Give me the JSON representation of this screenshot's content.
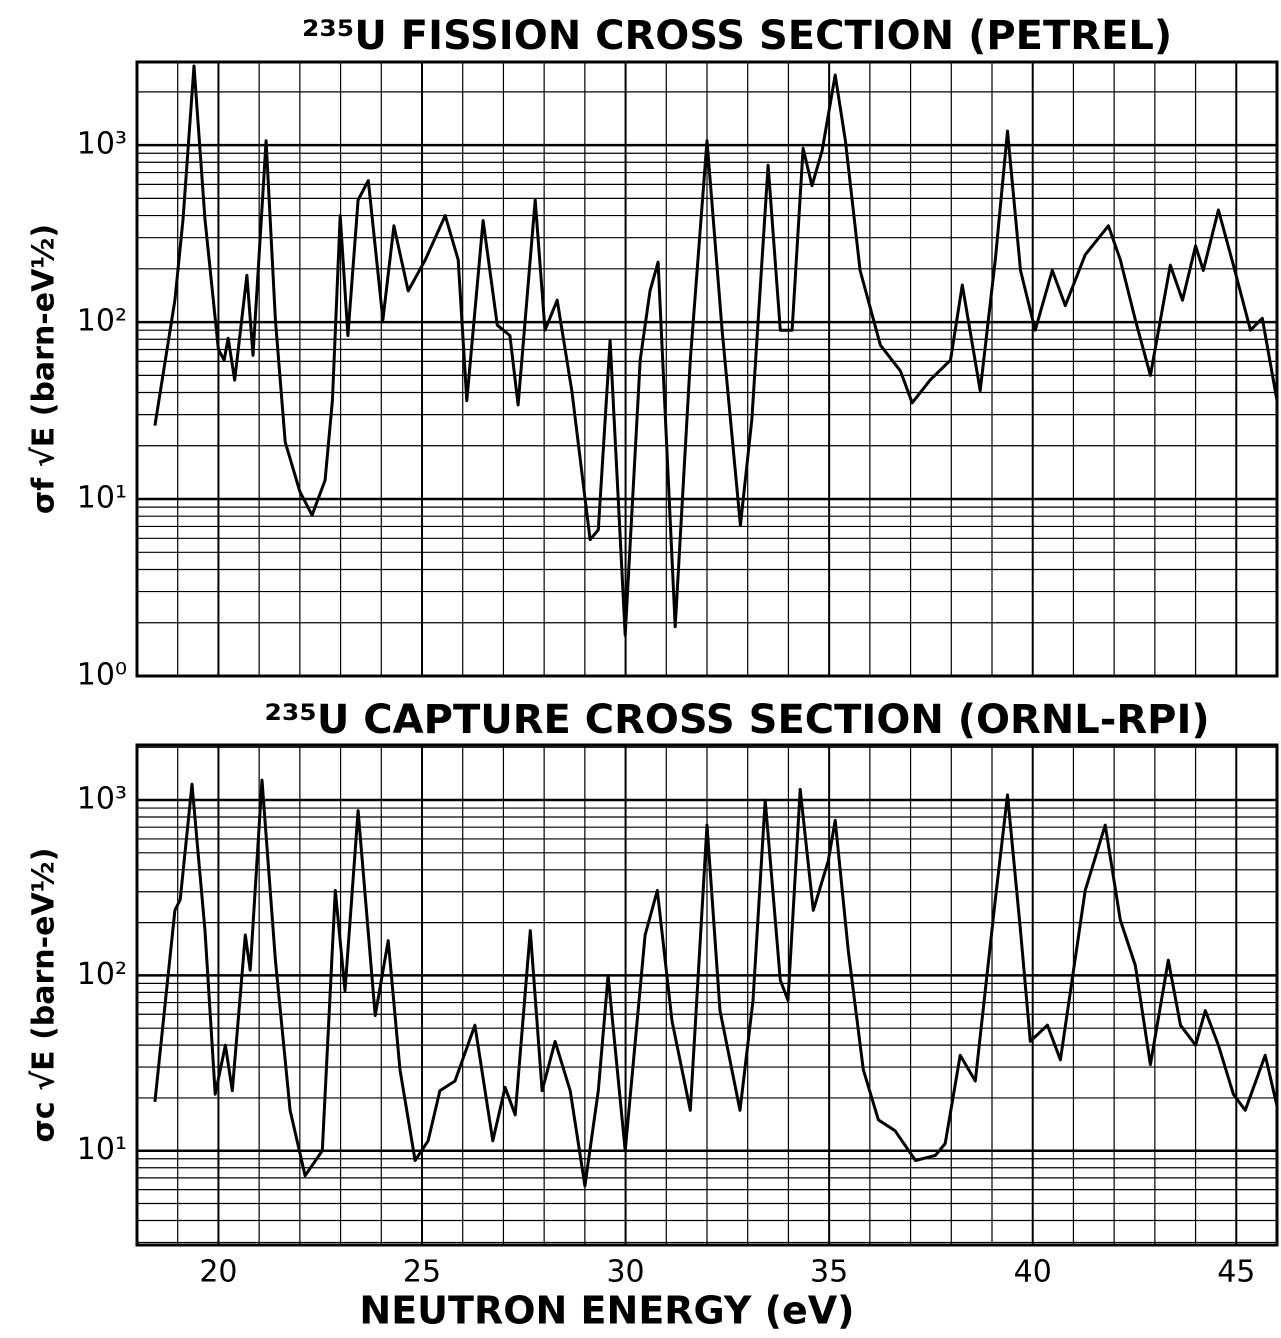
{
  "chart_data": [
    {
      "type": "line",
      "title": "²³⁵U FISSION CROSS SECTION (PETREL)",
      "ylabel": "σf √E (barn-eV½)",
      "color": "#000000",
      "log_y": true,
      "grid": true,
      "xtick_labels": false,
      "xlim": [
        18,
        46
      ],
      "xticks": [
        20,
        25,
        30,
        35,
        40,
        45
      ],
      "xminorticks": [
        19,
        21,
        22,
        23,
        24,
        26,
        27,
        28,
        29,
        31,
        32,
        33,
        34,
        36,
        37,
        38,
        39,
        41,
        42,
        43,
        44
      ],
      "ylim": [
        1,
        2950
      ],
      "yticks": [
        {
          "value": 1,
          "label": "10⁰"
        },
        {
          "value": 10,
          "label": "10¹"
        },
        {
          "value": 100,
          "label": "10²"
        },
        {
          "value": 1000,
          "label": "10³"
        }
      ],
      "yminorticks": [
        2,
        3,
        4,
        5,
        6,
        7,
        8,
        9,
        20,
        30,
        40,
        50,
        60,
        70,
        80,
        90,
        200,
        300,
        400,
        500,
        600,
        700,
        800,
        900,
        2000
      ],
      "x": [
        18.44,
        18.93,
        19.13,
        19.4,
        19.67,
        20.0,
        20.14,
        20.24,
        20.4,
        20.7,
        20.85,
        21.17,
        21.4,
        21.64,
        22.0,
        22.3,
        22.62,
        22.8,
        22.99,
        23.18,
        23.43,
        23.68,
        24.04,
        24.31,
        24.66,
        25.08,
        25.57,
        25.89,
        26.1,
        26.5,
        26.85,
        27.16,
        27.36,
        27.78,
        28.02,
        28.32,
        28.68,
        29.13,
        29.33,
        29.62,
        29.99,
        30.36,
        30.6,
        30.8,
        31.22,
        31.59,
        32.0,
        32.37,
        32.82,
        33.1,
        33.5,
        33.8,
        34.09,
        34.36,
        34.58,
        34.83,
        35.15,
        35.4,
        35.76,
        36.26,
        36.75,
        37.04,
        37.48,
        37.98,
        38.27,
        38.71,
        39.08,
        39.38,
        39.7,
        40.06,
        40.48,
        40.8,
        41.29,
        41.86,
        42.15,
        42.52,
        42.89,
        43.38,
        43.68,
        44.0,
        44.19,
        44.56,
        44.93,
        45.35,
        45.64,
        46.0
      ],
      "values": [
        26,
        133,
        380,
        2800,
        380,
        70,
        61,
        81,
        47,
        184,
        65,
        1060,
        103,
        21,
        11,
        8.1,
        12.8,
        36,
        400,
        84,
        490,
        630,
        103,
        350,
        150,
        225,
        400,
        225,
        36,
        375,
        96,
        84,
        34,
        490,
        90,
        133,
        41,
        5.9,
        6.7,
        79,
        1.7,
        61,
        150,
        218,
        1.9,
        61,
        1060,
        90,
        7.1,
        28,
        770,
        90,
        90,
        960,
        590,
        935,
        2490,
        1060,
        196,
        74,
        53,
        35,
        47,
        61,
        162,
        41,
        225,
        1200,
        196,
        90,
        196,
        124,
        240,
        350,
        225,
        103,
        50,
        210,
        133,
        270,
        196,
        430,
        210,
        90,
        105,
        36
      ]
    },
    {
      "type": "line",
      "title": "²³⁵U CAPTURE CROSS SECTION (ORNL-RPI)",
      "ylabel": "σc √E (barn-eV½)",
      "xlabel": "NEUTRON ENERGY (eV)",
      "color": "#000000",
      "log_y": true,
      "grid": true,
      "xtick_labels": true,
      "xlim": [
        18,
        46
      ],
      "xticks": [
        20,
        25,
        30,
        35,
        40,
        45
      ],
      "xminorticks": [
        19,
        21,
        22,
        23,
        24,
        26,
        27,
        28,
        29,
        31,
        32,
        33,
        34,
        36,
        37,
        38,
        39,
        41,
        42,
        43,
        44
      ],
      "ylim": [
        2.9,
        2060
      ],
      "yticks": [
        {
          "value": 10,
          "label": "10¹"
        },
        {
          "value": 100,
          "label": "10²"
        },
        {
          "value": 1000,
          "label": "10³"
        }
      ],
      "yminorticks": [
        3,
        4,
        5,
        6,
        7,
        8,
        9,
        20,
        30,
        40,
        50,
        60,
        70,
        80,
        90,
        200,
        300,
        400,
        500,
        600,
        700,
        800,
        900,
        2000
      ],
      "x": [
        18.44,
        18.93,
        19.06,
        19.35,
        19.67,
        19.92,
        20.17,
        20.34,
        20.66,
        20.78,
        21.07,
        21.4,
        21.76,
        22.13,
        22.55,
        22.87,
        23.11,
        23.43,
        23.85,
        24.17,
        24.46,
        24.83,
        25.15,
        25.44,
        25.81,
        26.3,
        26.74,
        27.04,
        27.29,
        27.66,
        27.95,
        28.27,
        28.64,
        29.0,
        29.33,
        29.57,
        29.99,
        30.48,
        30.78,
        31.14,
        31.59,
        32.0,
        32.32,
        32.81,
        33.13,
        33.43,
        33.8,
        33.99,
        34.29,
        34.61,
        34.98,
        35.15,
        35.47,
        35.84,
        36.21,
        36.62,
        37.12,
        37.61,
        37.85,
        38.22,
        38.59,
        39.08,
        39.38,
        39.7,
        39.94,
        40.36,
        40.68,
        41.29,
        41.78,
        42.15,
        42.52,
        42.89,
        43.33,
        43.63,
        44.0,
        44.24,
        44.56,
        44.93,
        45.22,
        45.71,
        46.0
      ],
      "values": [
        19,
        235,
        270,
        1230,
        180,
        21,
        40,
        22,
        170,
        107,
        1300,
        122,
        17,
        7.2,
        10,
        305,
        82,
        870,
        59,
        158,
        29,
        8.8,
        11.4,
        22,
        25,
        52,
        11.4,
        23,
        16,
        180,
        22,
        42,
        22,
        6.3,
        22,
        100,
        10,
        170,
        305,
        55,
        17,
        720,
        63,
        17,
        72,
        1000,
        94,
        72,
        1150,
        235,
        450,
        765,
        138,
        29,
        15,
        13,
        8.8,
        9.4,
        11,
        35,
        25,
        270,
        1070,
        180,
        42,
        52,
        33,
        305,
        720,
        207,
        114,
        31,
        122,
        52,
        40,
        63,
        40,
        21,
        17,
        35,
        18
      ]
    }
  ]
}
